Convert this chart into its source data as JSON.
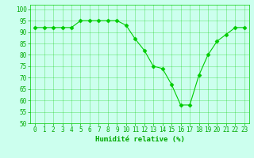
{
  "x": [
    0,
    1,
    2,
    3,
    4,
    5,
    6,
    7,
    8,
    9,
    10,
    11,
    12,
    13,
    14,
    15,
    16,
    17,
    18,
    19,
    20,
    21,
    22,
    23
  ],
  "y": [
    92,
    92,
    92,
    92,
    92,
    95,
    95,
    95,
    95,
    95,
    93,
    87,
    82,
    75,
    74,
    67,
    58,
    58,
    71,
    80,
    86,
    89,
    92,
    92
  ],
  "line_color": "#00cc00",
  "marker": "D",
  "marker_size": 2.5,
  "bg_color": "#ccffee",
  "grid_color": "#00cc00",
  "xlabel": "Humidité relative (%)",
  "ylim": [
    50,
    102
  ],
  "xlim": [
    -0.5,
    23.5
  ],
  "yticks": [
    50,
    55,
    60,
    65,
    70,
    75,
    80,
    85,
    90,
    95,
    100
  ],
  "xticks": [
    0,
    1,
    2,
    3,
    4,
    5,
    6,
    7,
    8,
    9,
    10,
    11,
    12,
    13,
    14,
    15,
    16,
    17,
    18,
    19,
    20,
    21,
    22,
    23
  ],
  "xlabel_color": "#00aa00",
  "xlabel_fontsize": 6.5,
  "tick_fontsize": 5.5,
  "tick_color": "#00aa00",
  "linewidth": 0.8
}
